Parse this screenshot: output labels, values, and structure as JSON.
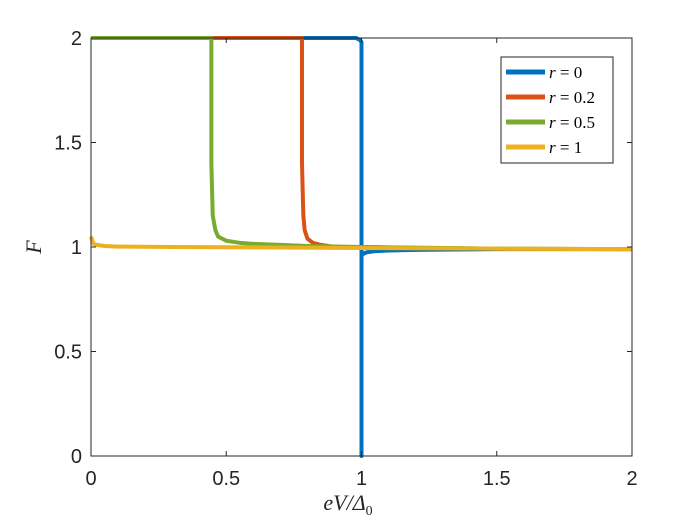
{
  "chart_data": {
    "type": "line",
    "title": "",
    "xlabel": "eV/Δ",
    "xlabel_sub": "0",
    "ylabel": "F",
    "xlim": [
      0,
      2
    ],
    "ylim": [
      0,
      2
    ],
    "xticks": [
      0,
      0.5,
      1,
      1.5,
      2
    ],
    "xtick_labels": [
      "0",
      "0.5",
      "1",
      "1.5",
      "2"
    ],
    "yticks": [
      0,
      0.5,
      1,
      1.5,
      2
    ],
    "ytick_labels": [
      "0",
      "0.5",
      "1",
      "1.5",
      "2"
    ],
    "grid": false,
    "legend_position": "top-right",
    "series": [
      {
        "name": "r = 0",
        "legend_var": "r",
        "legend_val": "= 0",
        "color": "#0072BD",
        "x": [
          0,
          0.9,
          0.98,
          0.995,
          1.0,
          1.0,
          1.0,
          1.005,
          1.01,
          1.02,
          1.05,
          1.1,
          1.2,
          1.5,
          2.0
        ],
        "y": [
          2.0,
          2.0,
          2.0,
          1.99,
          1.98,
          0.0,
          0.96,
          0.965,
          0.97,
          0.975,
          0.98,
          0.983,
          0.986,
          0.99,
          0.99
        ]
      },
      {
        "name": "r = 0.2",
        "legend_var": "r",
        "legend_val": "= 0.2",
        "color": "#D95319",
        "x": [
          0,
          0.78,
          0.78,
          0.785,
          0.79,
          0.8,
          0.82,
          0.85,
          0.9,
          1.0,
          1.2,
          1.5,
          2.0
        ],
        "y": [
          2.0,
          2.0,
          1.4,
          1.15,
          1.08,
          1.04,
          1.02,
          1.01,
          1.0,
          1.0,
          0.995,
          0.992,
          0.99
        ]
      },
      {
        "name": "r = 0.5",
        "legend_var": "r",
        "legend_val": "= 0.5",
        "color": "#77AC30",
        "x": [
          0,
          0.445,
          0.445,
          0.45,
          0.46,
          0.47,
          0.5,
          0.55,
          0.6,
          0.7,
          0.8,
          1.0,
          1.5,
          2.0
        ],
        "y": [
          2.0,
          2.0,
          1.4,
          1.15,
          1.08,
          1.05,
          1.03,
          1.02,
          1.015,
          1.01,
          1.005,
          1.0,
          0.992,
          0.99
        ]
      },
      {
        "name": "r = 1",
        "legend_var": "r",
        "legend_val": "= 1",
        "color": "#EDB120",
        "x": [
          0,
          0.005,
          0.01,
          0.02,
          0.05,
          0.1,
          0.3,
          0.6,
          1.0,
          1.5,
          2.0
        ],
        "y": [
          1.05,
          1.03,
          1.015,
          1.01,
          1.005,
          1.002,
          1.0,
          0.998,
          0.995,
          0.992,
          0.99
        ]
      }
    ]
  }
}
